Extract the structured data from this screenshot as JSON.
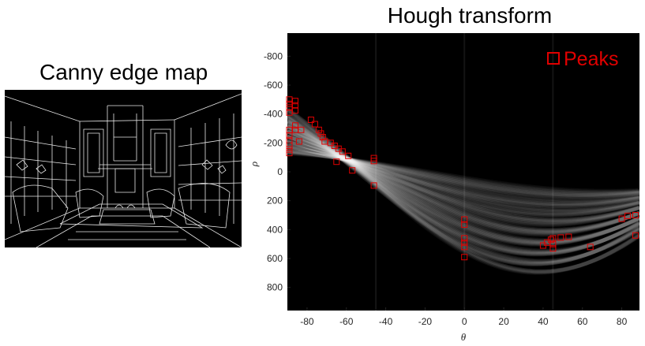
{
  "canny": {
    "title": "Canny edge map"
  },
  "hough": {
    "title": "Hough transform",
    "legend_label": "Peaks",
    "peak_color": "#e00000",
    "background_color": "#000000"
  },
  "chart_data": {
    "type": "scatter",
    "title": "Hough transform",
    "xlabel": "θ",
    "ylabel": "ρ",
    "xlim": [
      -90,
      89
    ],
    "ylim": [
      -960,
      960
    ],
    "y_reversed": true,
    "x_ticks": [
      -80,
      -60,
      -40,
      -20,
      0,
      20,
      40,
      60,
      80
    ],
    "y_ticks": [
      -800,
      -600,
      -400,
      -200,
      0,
      200,
      400,
      600,
      800
    ],
    "legend": "top-right",
    "grid": false,
    "series": [
      {
        "name": "Peaks",
        "marker": "square",
        "color": "#e00000",
        "points": [
          [
            -89,
            -500
          ],
          [
            -89,
            -470
          ],
          [
            -89,
            -445
          ],
          [
            -89,
            -410
          ],
          [
            -89,
            -290
          ],
          [
            -89,
            -250
          ],
          [
            -89,
            -220
          ],
          [
            -89,
            -180
          ],
          [
            -89,
            -155
          ],
          [
            -89,
            -130
          ],
          [
            -86,
            -490
          ],
          [
            -86,
            -460
          ],
          [
            -86,
            -425
          ],
          [
            -86,
            -320
          ],
          [
            -86,
            -290
          ],
          [
            -84,
            -210
          ],
          [
            -83,
            -290
          ],
          [
            -78,
            -360
          ],
          [
            -76,
            -330
          ],
          [
            -74,
            -290
          ],
          [
            -73,
            -265
          ],
          [
            -72,
            -240
          ],
          [
            -71,
            -210
          ],
          [
            -68,
            -200
          ],
          [
            -66,
            -180
          ],
          [
            -64,
            -160
          ],
          [
            -62,
            -140
          ],
          [
            -59,
            -110
          ],
          [
            -65,
            -70
          ],
          [
            -57,
            -10
          ],
          [
            -46,
            -95
          ],
          [
            -46,
            -75
          ],
          [
            -46,
            95
          ],
          [
            0,
            330
          ],
          [
            0,
            365
          ],
          [
            0,
            460
          ],
          [
            0,
            490
          ],
          [
            0,
            520
          ],
          [
            0,
            590
          ],
          [
            40,
            510
          ],
          [
            42,
            490
          ],
          [
            44,
            470
          ],
          [
            45,
            460
          ],
          [
            45,
            500
          ],
          [
            45,
            530
          ],
          [
            49,
            455
          ],
          [
            53,
            450
          ],
          [
            64,
            520
          ],
          [
            80,
            325
          ],
          [
            83,
            305
          ],
          [
            87,
            300
          ],
          [
            87,
            440
          ]
        ]
      }
    ]
  }
}
